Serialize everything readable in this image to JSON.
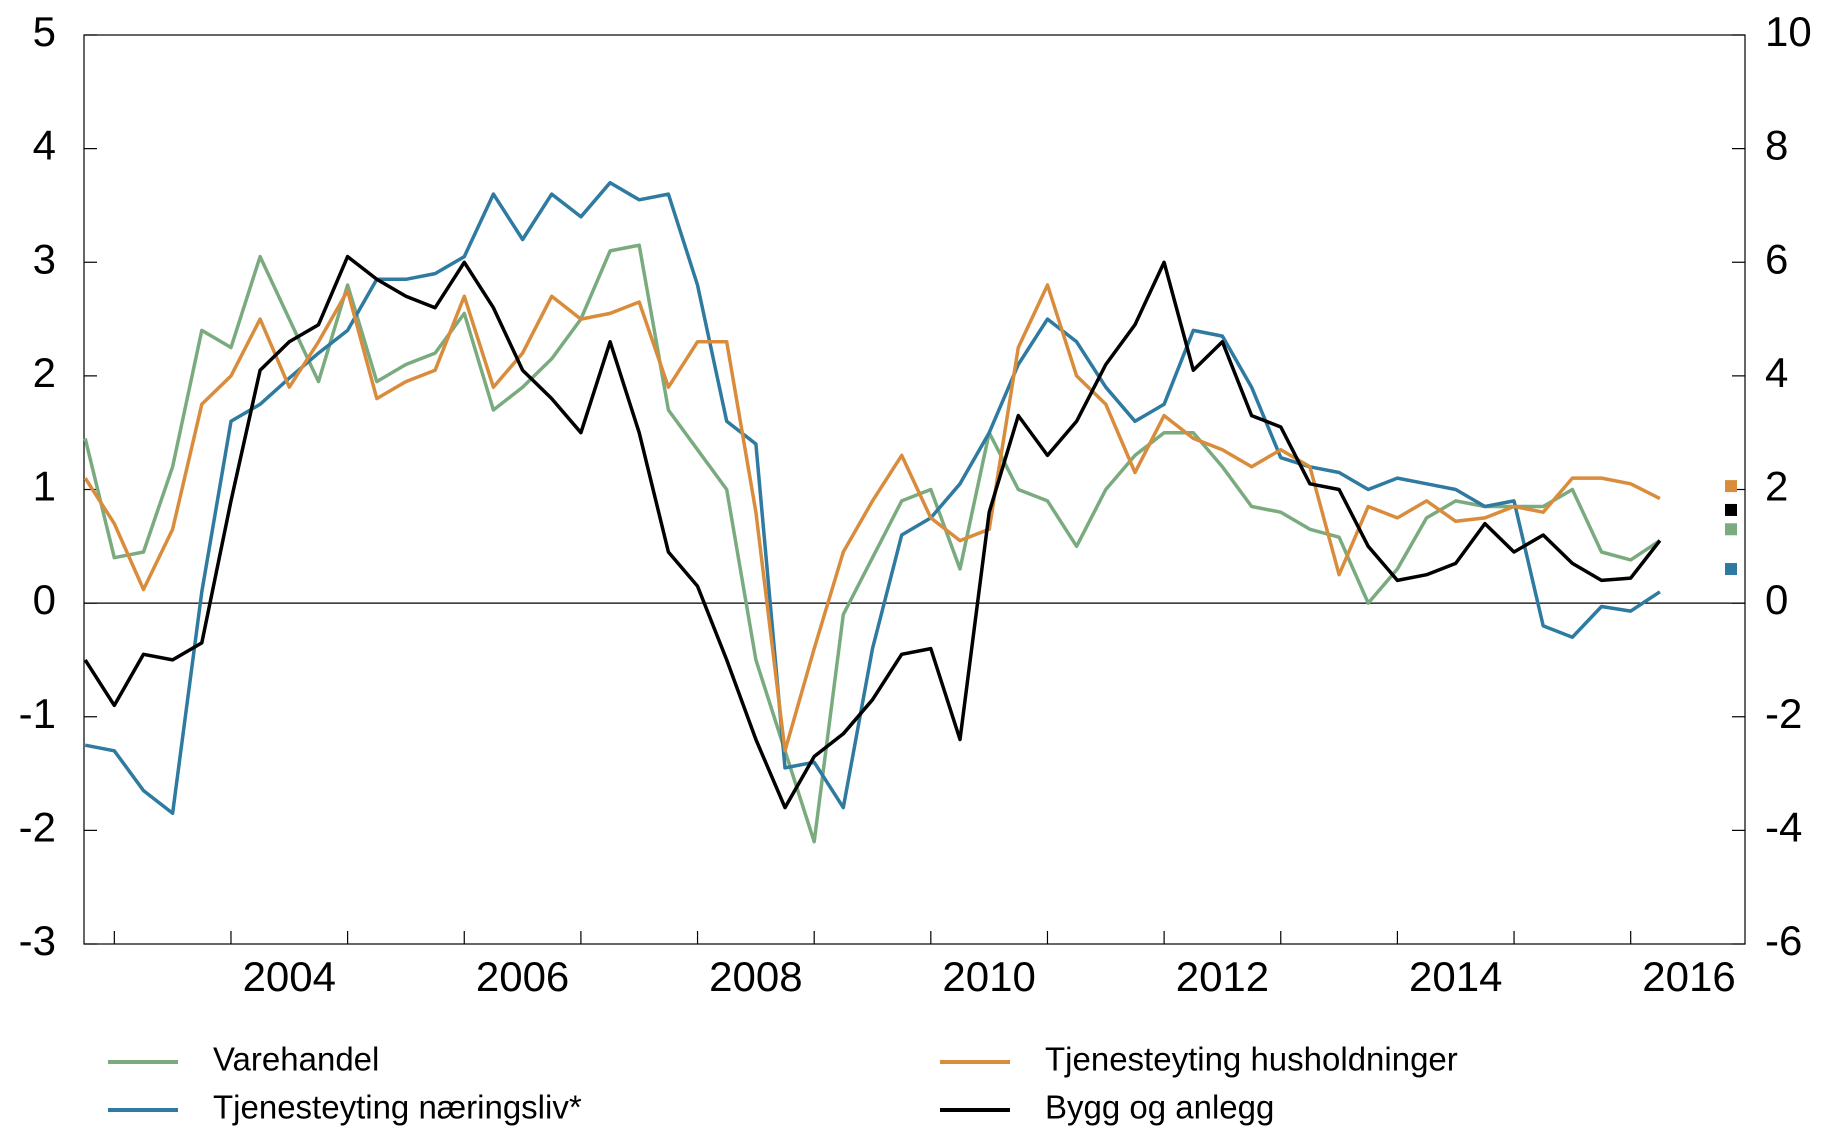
{
  "chart_data": {
    "type": "line",
    "x": [
      2002.75,
      2003,
      2003.25,
      2003.5,
      2003.75,
      2004,
      2004.25,
      2004.5,
      2004.75,
      2005,
      2005.25,
      2005.5,
      2005.75,
      2006,
      2006.25,
      2006.5,
      2006.75,
      2007,
      2007.25,
      2007.5,
      2007.75,
      2008,
      2008.25,
      2008.5,
      2008.75,
      2009,
      2009.25,
      2009.5,
      2009.75,
      2010,
      2010.25,
      2010.5,
      2010.75,
      2011,
      2011.25,
      2011.5,
      2011.75,
      2012,
      2012.25,
      2012.5,
      2012.75,
      2013,
      2013.25,
      2013.5,
      2013.75,
      2014,
      2014.25,
      2014.5,
      2014.75,
      2015,
      2015.25,
      2015.5,
      2015.75,
      2016,
      2016.25
    ],
    "series": [
      {
        "name": "Varehandel",
        "color": "#7aab7f",
        "marker": 0.65,
        "values": [
          1.45,
          0.4,
          0.45,
          1.2,
          2.4,
          2.25,
          3.05,
          2.5,
          1.95,
          2.8,
          1.95,
          2.1,
          2.2,
          2.55,
          1.7,
          1.9,
          2.15,
          2.5,
          3.1,
          3.15,
          1.7,
          1.35,
          1.0,
          -0.5,
          -1.3,
          -2.1,
          -0.1,
          0.4,
          0.9,
          1.0,
          0.3,
          1.5,
          1.0,
          0.9,
          0.5,
          1.0,
          1.3,
          1.5,
          1.5,
          1.2,
          0.85,
          0.8,
          0.65,
          0.58,
          0.0,
          0.3,
          0.75,
          0.9,
          0.85,
          0.85,
          0.85,
          1.0,
          0.45,
          0.38,
          0.55
        ]
      },
      {
        "name": "Tjenesteyting næringsliv*",
        "color": "#2e7aa1",
        "marker": 0.3,
        "values": [
          -1.25,
          -1.3,
          -1.65,
          -1.85,
          0.1,
          1.6,
          1.75,
          1.98,
          2.2,
          2.4,
          2.85,
          2.85,
          2.9,
          3.05,
          3.6,
          3.2,
          3.6,
          3.4,
          3.7,
          3.55,
          3.6,
          2.8,
          1.6,
          1.4,
          -1.45,
          -1.4,
          -1.8,
          -0.4,
          0.6,
          0.75,
          1.05,
          1.5,
          2.1,
          2.5,
          2.3,
          1.9,
          1.6,
          1.75,
          2.4,
          2.35,
          1.9,
          1.28,
          1.2,
          1.15,
          1.0,
          1.1,
          1.05,
          1.0,
          0.85,
          0.9,
          -0.2,
          -0.3,
          -0.03,
          -0.07,
          0.1
        ]
      },
      {
        "name": "Tjenesteyting husholdninger",
        "color": "#d88c3c",
        "marker": 1.03,
        "values": [
          1.1,
          0.7,
          0.12,
          0.65,
          1.75,
          2.0,
          2.5,
          1.9,
          2.3,
          2.75,
          1.8,
          1.95,
          2.05,
          2.7,
          1.9,
          2.2,
          2.7,
          2.5,
          2.55,
          2.65,
          1.9,
          2.3,
          2.3,
          0.8,
          -1.3,
          -0.4,
          0.45,
          0.9,
          1.3,
          0.75,
          0.55,
          0.65,
          2.25,
          2.8,
          2.0,
          1.75,
          1.15,
          1.65,
          1.45,
          1.35,
          1.2,
          1.35,
          1.2,
          0.25,
          0.85,
          0.75,
          0.9,
          0.72,
          0.75,
          0.85,
          0.8,
          1.1,
          1.1,
          1.05,
          0.92
        ]
      },
      {
        "name": "Bygg og anlegg",
        "color": "#000000",
        "axis": "y2",
        "marker": 1.64,
        "values": [
          -1.0,
          -1.8,
          -0.9,
          -1.0,
          -0.7,
          1.8,
          4.1,
          4.6,
          4.9,
          6.1,
          5.7,
          5.4,
          5.2,
          6.0,
          5.2,
          4.1,
          3.6,
          3.0,
          4.6,
          3.0,
          0.9,
          0.3,
          -1.0,
          -2.4,
          -3.6,
          -2.7,
          -2.3,
          -1.7,
          -0.9,
          -0.8,
          -2.4,
          1.6,
          3.3,
          2.6,
          3.2,
          4.2,
          4.9,
          6.0,
          4.1,
          4.6,
          3.3,
          3.1,
          2.1,
          2.0,
          1.0,
          0.4,
          0.5,
          0.7,
          1.4,
          0.9,
          1.2,
          0.7,
          0.4,
          0.44,
          1.1
        ]
      }
    ],
    "xlim": [
      2002.74,
      2016.98
    ],
    "xtick_marks": [
      2003,
      2004,
      2005,
      2006,
      2007,
      2008,
      2009,
      2010,
      2011,
      2012,
      2013,
      2014,
      2015,
      2016
    ],
    "xticks": [
      {
        "value": 2004.5,
        "label": "2004"
      },
      {
        "value": 2006.5,
        "label": "2006"
      },
      {
        "value": 2008.5,
        "label": "2008"
      },
      {
        "value": 2010.5,
        "label": "2010"
      },
      {
        "value": 2012.5,
        "label": "2012"
      },
      {
        "value": 2014.5,
        "label": "2014"
      },
      {
        "value": 2016.5,
        "label": "2016"
      }
    ],
    "ylim": [
      -3,
      5
    ],
    "yticks": [
      -3,
      -2,
      -1,
      0,
      1,
      2,
      3,
      4,
      5
    ],
    "y2lim": [
      -6,
      10
    ],
    "y2ticks": [
      -6,
      -4,
      -2,
      0,
      2,
      4,
      6,
      8,
      10
    ],
    "zero_line": true,
    "legend": "bottom"
  }
}
